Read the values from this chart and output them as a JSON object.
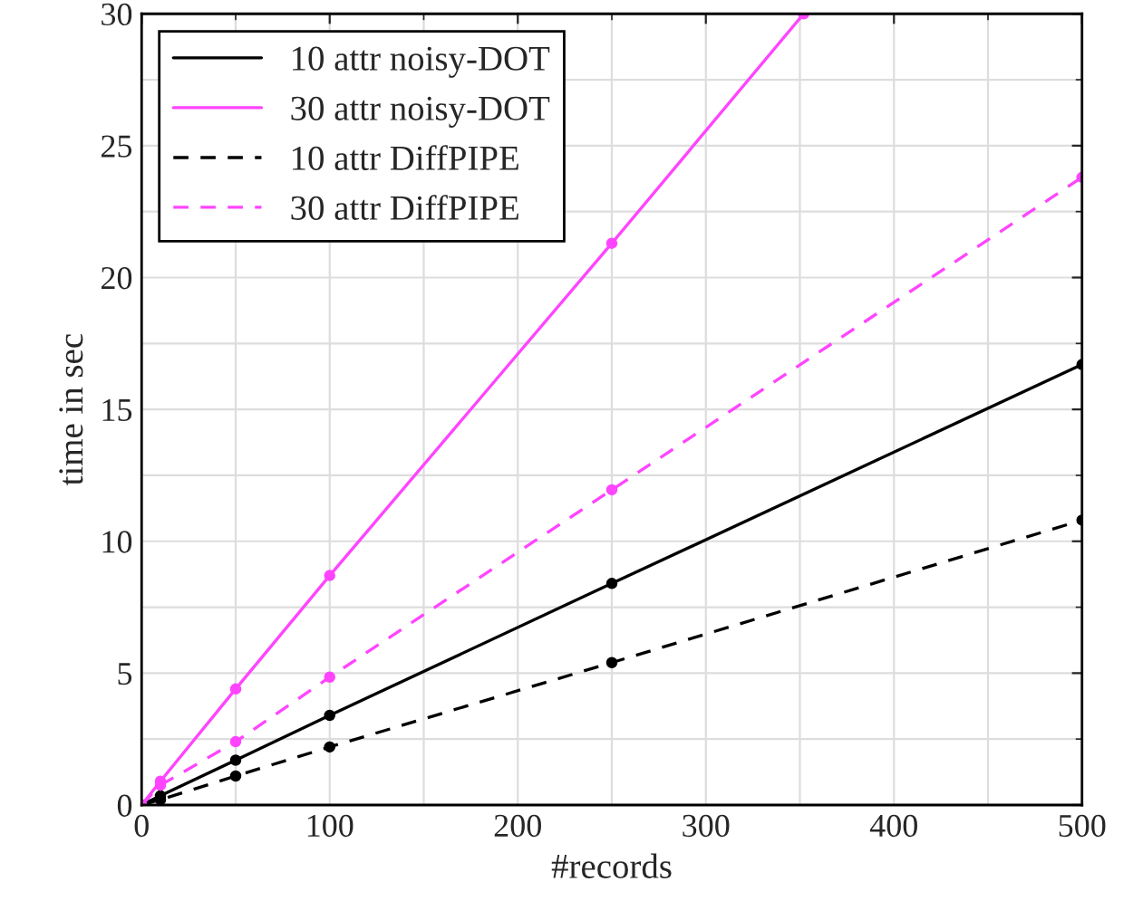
{
  "chart_data": {
    "type": "line",
    "xlabel": "#records",
    "ylabel": "time in sec",
    "xlim": [
      0,
      500
    ],
    "ylim": [
      0,
      30
    ],
    "xticks": [
      0,
      100,
      200,
      300,
      400,
      500
    ],
    "yticks": [
      0,
      5,
      10,
      15,
      20,
      25,
      30
    ],
    "grid": true,
    "legend": "top left",
    "marker": "circle",
    "series": [
      {
        "name": "10 attr noisy-DOT",
        "color": "#000000",
        "line_style": "solid",
        "x": [
          0,
          10,
          50,
          100,
          250,
          500
        ],
        "values": [
          0,
          0.35,
          1.7,
          3.4,
          8.4,
          16.7
        ]
      },
      {
        "name": "30 attr noisy-DOT",
        "color": "#ff44ff",
        "line_style": "solid",
        "x": [
          0,
          10,
          50,
          100,
          250,
          352
        ],
        "values": [
          0,
          0.9,
          4.4,
          8.7,
          21.3,
          30
        ]
      },
      {
        "name": "10 attr DiffPIPE",
        "color": "#000000",
        "line_style": "dashed",
        "x": [
          0,
          10,
          50,
          100,
          250,
          500
        ],
        "values": [
          0,
          0.2,
          1.1,
          2.2,
          5.4,
          10.8
        ]
      },
      {
        "name": "30 attr DiffPIPE",
        "color": "#ff44ff",
        "line_style": "dashed",
        "x": [
          0,
          10,
          50,
          100,
          250,
          500
        ],
        "values": [
          0,
          0.75,
          2.4,
          4.85,
          11.95,
          23.8
        ]
      }
    ]
  }
}
